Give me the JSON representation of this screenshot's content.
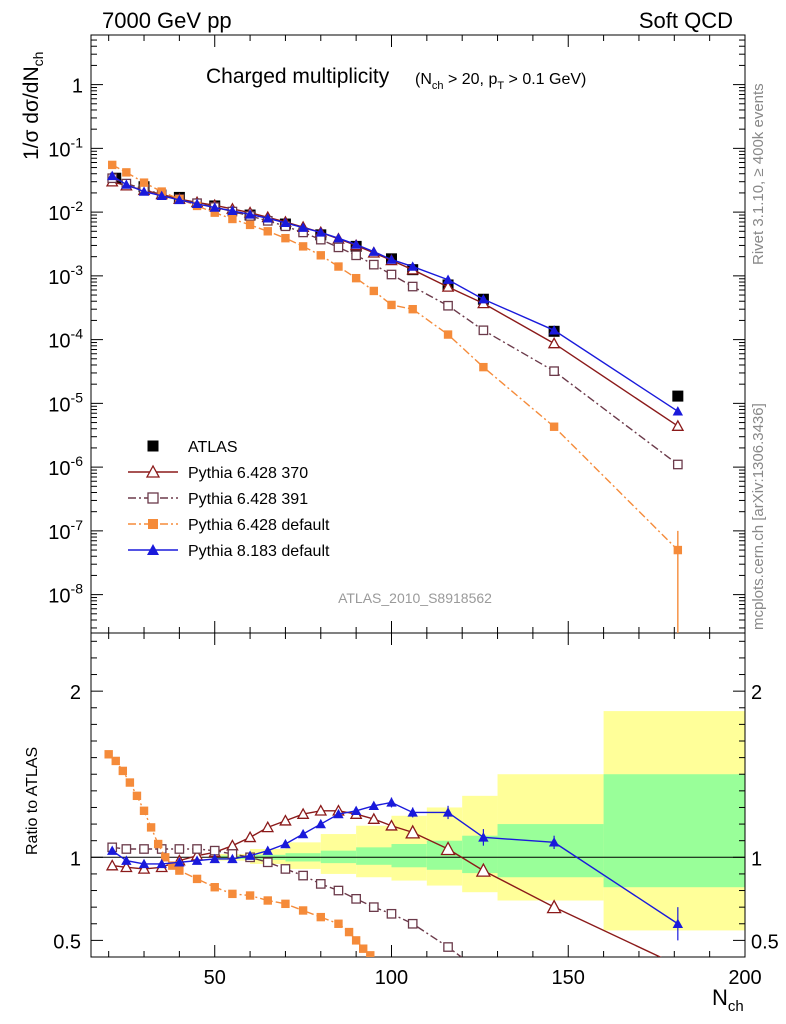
{
  "header": {
    "left": "7000 GeV pp",
    "right": "Soft QCD"
  },
  "side_labels": {
    "rivet": "Rivet 3.1.10, ≥ 400k events",
    "source": "mcplots.cern.ch [arXiv:1306.3436]"
  },
  "chart_data": {
    "type": "line",
    "title": "Charged multiplicity",
    "title_sub": "(N_ch > 20, p_T > 0.1 GeV)",
    "title_sub_parts": {
      "open": "(N",
      "ch": "ch",
      "mid": " > 20, p",
      "t": "T",
      "close": " > 0.1 GeV)"
    },
    "analysis_id": "ATLAS_2010_S8918562",
    "xlabel": "N_ch",
    "xlabel_parts": {
      "main": "N",
      "sub": "ch"
    },
    "ylabel": "1/σ dσ/dN_ch",
    "ylabel_parts": {
      "main": "1/σ dσ/dN",
      "sub": "ch"
    },
    "ratio_ylabel": "Ratio to ATLAS",
    "xlim": [
      15,
      200
    ],
    "ylim_log": [
      2.5e-09,
      6
    ],
    "ratio_ylim": [
      0.4,
      2.35
    ],
    "x_ticks": [
      50,
      100,
      150,
      200
    ],
    "x_tick_labels": [
      "50",
      "100",
      "150",
      "200"
    ],
    "y_ticks": [
      {
        "mant": "",
        "exp": "-8",
        "plain": ""
      },
      {
        "mant": "",
        "exp": "-7",
        "plain": ""
      },
      {
        "mant": "",
        "exp": "-6",
        "plain": ""
      },
      {
        "mant": "",
        "exp": "-5",
        "plain": ""
      },
      {
        "mant": "",
        "exp": "-4",
        "plain": ""
      },
      {
        "mant": "",
        "exp": "-3",
        "plain": ""
      },
      {
        "mant": "",
        "exp": "-2",
        "plain": ""
      },
      {
        "mant": "",
        "exp": "-1",
        "plain": ""
      },
      {
        "mant": "",
        "exp": "",
        "plain": "1"
      }
    ],
    "y_tick_values": [
      1e-08,
      1e-07,
      1e-06,
      1e-05,
      0.0001,
      0.001,
      0.01,
      0.1,
      1
    ],
    "ratio_ticks": [
      0.5,
      1,
      2
    ],
    "ratio_tick_labels": [
      "0.5",
      "1",
      "2"
    ],
    "legend": [
      {
        "label": "ATLAS",
        "color": "#000000",
        "marker": "square-filled",
        "line": "none"
      },
      {
        "label": "Pythia 6.428 370",
        "color": "#8b1a1a",
        "marker": "triangle-open",
        "line": "solid"
      },
      {
        "label": "Pythia 6.428 391",
        "color": "#6b3a4a",
        "marker": "square-open",
        "line": "dashdot"
      },
      {
        "label": "Pythia 6.428 default",
        "color": "#f58b3a",
        "marker": "square-filled",
        "line": "dashdot"
      },
      {
        "label": "Pythia 8.183 default",
        "color": "#1a1adb",
        "marker": "triangle-filled",
        "line": "solid"
      }
    ],
    "uncertainty_bands": {
      "inner_color": "#99ff99",
      "outer_color": "#ffff99",
      "x_edges": [
        50,
        60,
        70,
        80,
        90,
        100,
        110,
        120,
        130,
        160,
        200
      ],
      "inner_lo": [
        0.99,
        0.985,
        0.975,
        0.965,
        0.955,
        0.94,
        0.925,
        0.905,
        0.88,
        0.82
      ],
      "inner_hi": [
        1.01,
        1.015,
        1.025,
        1.04,
        1.06,
        1.08,
        1.1,
        1.13,
        1.2,
        1.5
      ],
      "outer_lo": [
        0.98,
        0.96,
        0.93,
        0.9,
        0.88,
        0.86,
        0.83,
        0.79,
        0.74,
        0.56
      ],
      "outer_hi": [
        1.02,
        1.05,
        1.09,
        1.14,
        1.19,
        1.25,
        1.3,
        1.37,
        1.5,
        1.88
      ]
    },
    "main_series": [
      {
        "name": "ATLAS",
        "color": "#000000",
        "marker": "square-filled",
        "line": "none",
        "x": [
          22,
          30,
          40,
          50,
          60,
          70,
          80,
          90,
          100,
          106,
          116,
          126,
          146,
          181
        ],
        "y": [
          0.034,
          0.025,
          0.017,
          0.0125,
          0.009,
          0.0065,
          0.0044,
          0.0029,
          0.00185,
          0.00125,
          0.00072,
          0.00043,
          0.000135,
          1.3e-05
        ]
      },
      {
        "name": "Pythia 6.428 370",
        "color": "#8b1a1a",
        "marker": "triangle-open",
        "line": "solid",
        "x": [
          21,
          25,
          30,
          35,
          40,
          45,
          50,
          55,
          60,
          65,
          70,
          75,
          80,
          85,
          90,
          95,
          100,
          106,
          116,
          126,
          146,
          181
        ],
        "y": [
          0.03,
          0.026,
          0.022,
          0.019,
          0.016,
          0.0142,
          0.0128,
          0.0112,
          0.0098,
          0.0083,
          0.007,
          0.0058,
          0.0048,
          0.0038,
          0.003,
          0.0023,
          0.00175,
          0.00125,
          0.00067,
          0.00037,
          8.7e-05,
          4.4e-06
        ]
      },
      {
        "name": "Pythia 6.428 391",
        "color": "#6b3a4a",
        "marker": "square-open",
        "line": "dashdot",
        "x": [
          21,
          25,
          30,
          35,
          40,
          45,
          50,
          55,
          60,
          65,
          70,
          75,
          80,
          85,
          90,
          95,
          100,
          106,
          116,
          126,
          146,
          181
        ],
        "y": [
          0.034,
          0.028,
          0.023,
          0.019,
          0.016,
          0.0138,
          0.012,
          0.0102,
          0.0087,
          0.0073,
          0.006,
          0.0048,
          0.0037,
          0.0028,
          0.0021,
          0.0015,
          0.00105,
          0.00068,
          0.00034,
          0.00014,
          3.2e-05,
          1.1e-06
        ]
      },
      {
        "name": "Pythia 6.428 default",
        "color": "#f58b3a",
        "marker": "square-filled",
        "line": "dashdot",
        "x": [
          21,
          25,
          30,
          35,
          40,
          45,
          50,
          55,
          60,
          65,
          70,
          75,
          80,
          85,
          90,
          95,
          100,
          106,
          116,
          126,
          146,
          181
        ],
        "y": [
          0.055,
          0.042,
          0.029,
          0.021,
          0.016,
          0.0125,
          0.0098,
          0.0078,
          0.0063,
          0.005,
          0.0039,
          0.0029,
          0.0021,
          0.0014,
          0.00092,
          0.00058,
          0.00035,
          0.0003,
          0.00012,
          3.7e-05,
          4.3e-06,
          5e-08
        ]
      },
      {
        "name": "Pythia 8.183 default",
        "color": "#1a1adb",
        "marker": "triangle-filled",
        "line": "solid",
        "x": [
          21,
          25,
          30,
          35,
          40,
          45,
          50,
          55,
          60,
          65,
          70,
          75,
          80,
          85,
          90,
          95,
          100,
          106,
          116,
          126,
          146,
          181
        ],
        "y": [
          0.037,
          0.027,
          0.021,
          0.018,
          0.0155,
          0.0135,
          0.0118,
          0.0105,
          0.0092,
          0.008,
          0.0068,
          0.0057,
          0.0048,
          0.0039,
          0.0031,
          0.0024,
          0.0018,
          0.0014,
          0.00087,
          0.00043,
          0.00014,
          7.5e-06
        ]
      }
    ],
    "ratio_series": [
      {
        "name": "Pythia 6.428 370",
        "color": "#8b1a1a",
        "marker": "triangle-open",
        "line": "solid",
        "x": [
          21,
          25,
          30,
          35,
          40,
          45,
          50,
          55,
          60,
          65,
          70,
          75,
          80,
          85,
          90,
          95,
          100,
          106,
          116,
          126,
          146,
          181,
          200
        ],
        "y": [
          0.95,
          0.94,
          0.93,
          0.94,
          0.98,
          1.01,
          1.03,
          1.07,
          1.12,
          1.18,
          1.22,
          1.26,
          1.28,
          1.28,
          1.26,
          1.23,
          1.19,
          1.15,
          1.05,
          0.92,
          0.7,
          0.35,
          0.2
        ]
      },
      {
        "name": "Pythia 6.428 391",
        "color": "#6b3a4a",
        "marker": "square-open",
        "line": "dashdot",
        "x": [
          21,
          25,
          30,
          35,
          40,
          45,
          50,
          55,
          60,
          65,
          70,
          75,
          80,
          85,
          90,
          95,
          100,
          106,
          116,
          126
        ],
        "y": [
          1.06,
          1.05,
          1.05,
          1.05,
          1.05,
          1.05,
          1.04,
          1.02,
          1.0,
          0.97,
          0.93,
          0.89,
          0.84,
          0.8,
          0.75,
          0.7,
          0.66,
          0.6,
          0.46,
          0.3
        ]
      },
      {
        "name": "Pythia 6.428 default",
        "color": "#f58b3a",
        "marker": "square-filled",
        "line": "dashdot",
        "x": [
          20,
          22,
          24,
          26,
          28,
          30,
          32,
          34,
          36,
          38,
          40,
          45,
          50,
          55,
          60,
          65,
          70,
          75,
          80,
          85,
          88,
          90,
          92,
          94,
          96
        ],
        "y": [
          1.62,
          1.58,
          1.52,
          1.45,
          1.37,
          1.28,
          1.18,
          1.08,
          1.0,
          0.95,
          0.92,
          0.87,
          0.82,
          0.78,
          0.77,
          0.74,
          0.72,
          0.68,
          0.64,
          0.6,
          0.55,
          0.5,
          0.45,
          0.41,
          0.36
        ]
      },
      {
        "name": "Pythia 8.183 default",
        "color": "#1a1adb",
        "marker": "triangle-filled",
        "line": "solid",
        "x": [
          21,
          25,
          30,
          35,
          40,
          45,
          50,
          55,
          60,
          65,
          70,
          75,
          80,
          85,
          90,
          95,
          100,
          106,
          116,
          126,
          146,
          181
        ],
        "y": [
          1.04,
          0.98,
          0.96,
          0.96,
          0.97,
          0.98,
          0.99,
          0.99,
          1.01,
          1.04,
          1.08,
          1.14,
          1.2,
          1.26,
          1.28,
          1.31,
          1.33,
          1.27,
          1.27,
          1.12,
          1.09,
          0.6
        ],
        "yerr": [
          0.01,
          0.01,
          0.01,
          0.01,
          0.01,
          0.01,
          0.01,
          0.01,
          0.01,
          0.01,
          0.01,
          0.01,
          0.02,
          0.02,
          0.02,
          0.02,
          0.03,
          0.03,
          0.04,
          0.05,
          0.04,
          0.1
        ]
      }
    ]
  }
}
